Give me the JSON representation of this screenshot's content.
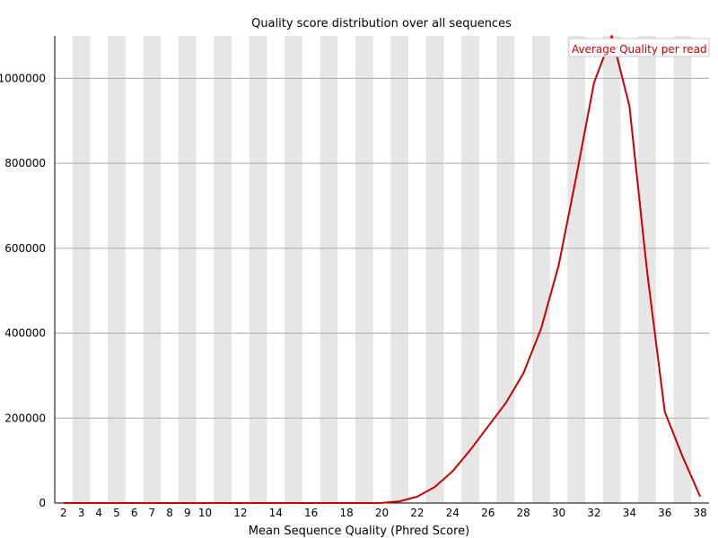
{
  "chart_data": {
    "type": "line",
    "title": "Quality score distribution over all sequences",
    "xlabel": "Mean Sequence Quality (Phred Score)",
    "ylabel": "",
    "xlim": [
      1.5,
      38.5
    ],
    "ylim": [
      0,
      1100000
    ],
    "x_tick_labels": [
      "2",
      "3",
      "4",
      "5",
      "6",
      "7",
      "8",
      "9",
      "10",
      "12",
      "14",
      "16",
      "18",
      "20",
      "22",
      "24",
      "26",
      "28",
      "30",
      "32",
      "34",
      "36",
      "38"
    ],
    "y_ticks": [
      0,
      200000,
      400000,
      600000,
      800000,
      1000000
    ],
    "y_tick_labels": [
      "0",
      "200000",
      "400000",
      "600000",
      "800000",
      "1000000"
    ],
    "grid": "horizontal",
    "background_bands": "alternating vertical grey bands per Phred score",
    "legend_position": "top-right",
    "series": [
      {
        "name": "Average Quality per read",
        "color": "#cc0000",
        "x": [
          2,
          3,
          4,
          5,
          6,
          7,
          8,
          9,
          10,
          11,
          12,
          13,
          14,
          15,
          16,
          17,
          18,
          19,
          20,
          21,
          22,
          23,
          24,
          25,
          26,
          27,
          28,
          29,
          30,
          31,
          32,
          33,
          34,
          35,
          36,
          37,
          38
        ],
        "values": [
          0,
          0,
          0,
          0,
          0,
          0,
          0,
          0,
          0,
          0,
          0,
          0,
          0,
          0,
          0,
          0,
          0,
          0,
          200,
          4000,
          15000,
          38000,
          75000,
          125000,
          180000,
          235000,
          305000,
          410000,
          560000,
          770000,
          990000,
          1100000,
          935000,
          545000,
          215000,
          110000,
          15000
        ]
      }
    ]
  }
}
